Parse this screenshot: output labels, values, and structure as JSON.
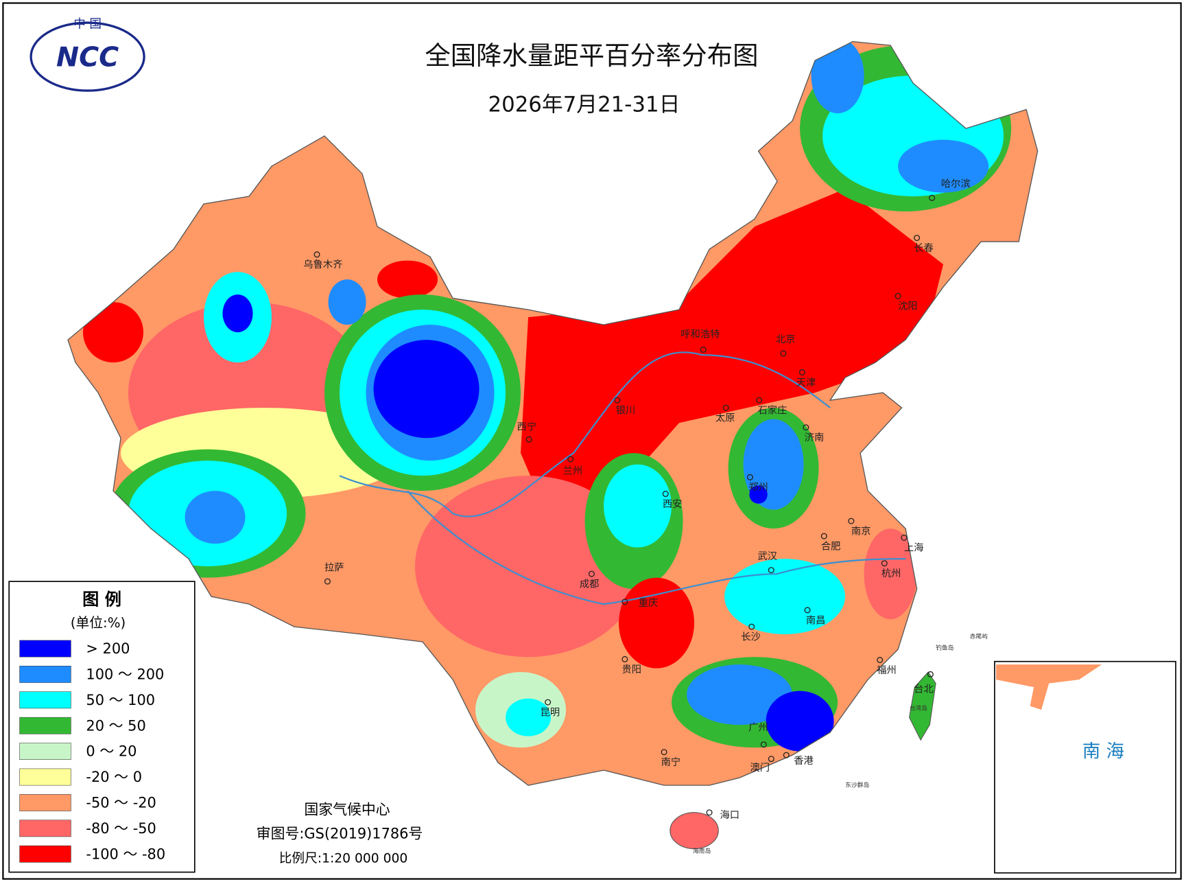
{
  "header": {
    "title": "全国降水量距平百分率分布图",
    "date": "2026年7月21-31日"
  },
  "logo": {
    "top": "中 国",
    "text": "NCC"
  },
  "legend": {
    "title": "图 例",
    "unit": "(单位:%)",
    "items": [
      {
        "label": "> 200",
        "color": "#0000ff"
      },
      {
        "label": "100 ～ 200",
        "color": "#1e8cff"
      },
      {
        "label": "50 ～ 100",
        "color": "#00ffff"
      },
      {
        "label": "20 ～ 50",
        "color": "#33b833"
      },
      {
        "label": "0 ～ 20",
        "color": "#c8f5c8"
      },
      {
        "label": "-20 ～ 0",
        "color": "#ffff99"
      },
      {
        "label": "-50 ～ -20",
        "color": "#ff9966"
      },
      {
        "label": "-80 ～ -50",
        "color": "#ff6666"
      },
      {
        "label": "-100 ～ -80",
        "color": "#ff0000"
      }
    ]
  },
  "cities": [
    "乌鲁木齐",
    "哈尔滨",
    "长春",
    "沈阳",
    "呼和浩特",
    "北京",
    "天津",
    "石家庄",
    "太原",
    "银川",
    "济南",
    "西宁",
    "兰州",
    "郑州",
    "西安",
    "南京",
    "合肥",
    "上海",
    "武汉",
    "拉萨",
    "成都",
    "杭州",
    "重庆",
    "南昌",
    "长沙",
    "福州",
    "贵阳",
    "台北",
    "昆明",
    "广州",
    "南宁",
    "香港",
    "澳门",
    "海口"
  ],
  "minor_labels": [
    "钓鱼岛",
    "赤尾屿",
    "台湾岛",
    "东沙群岛",
    "海南岛"
  ],
  "inset": {
    "label": "南 海"
  },
  "footer": {
    "org": "国家气候中心",
    "review": "审图号:GS(2019)1786号",
    "scale": "比例尺:1:20 000 000"
  }
}
